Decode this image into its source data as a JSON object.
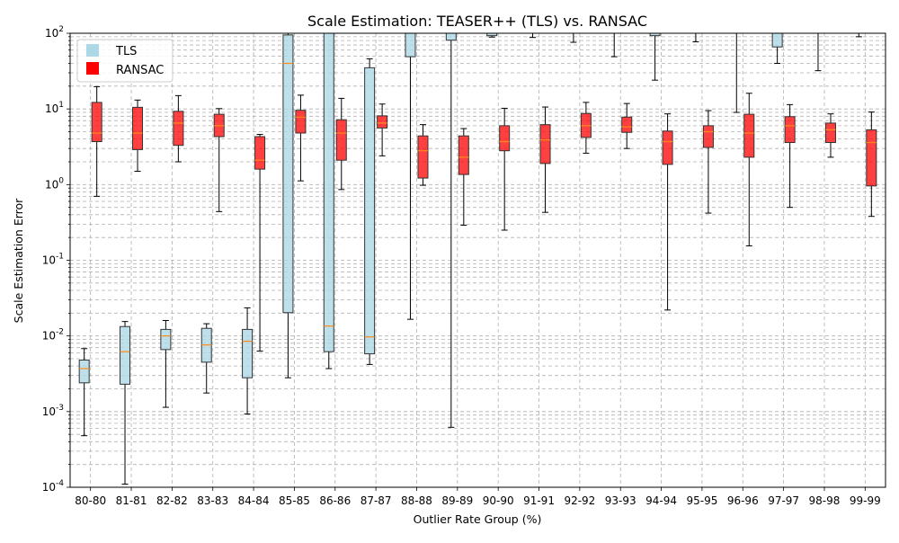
{
  "chart_data": {
    "type": "box",
    "title": "Scale Estimation: TEASER++ (TLS) vs. RANSAC",
    "xlabel": "Outlier Rate Group (%)",
    "ylabel": "Scale Estimation Error",
    "yscale": "log",
    "ylim": [
      0.0001,
      100
    ],
    "grid": true,
    "legend": {
      "position": "top-left",
      "entries": [
        "TLS",
        "RANSAC"
      ]
    },
    "categories": [
      "80-80",
      "81-81",
      "82-82",
      "83-83",
      "84-84",
      "85-85",
      "86-86",
      "87-87",
      "88-88",
      "89-89",
      "90-90",
      "91-91",
      "92-92",
      "93-93",
      "94-94",
      "95-95",
      "96-96",
      "97-97",
      "98-98",
      "99-99"
    ],
    "y_tick_labels": [
      "10^-4",
      "10^-3",
      "10^-2",
      "10^-1",
      "10^0",
      "10^1",
      "10^2"
    ],
    "series": [
      {
        "name": "TLS",
        "color": "#add8e6",
        "boxes": [
          {
            "whislo": 0.00048,
            "q1": 0.0024,
            "med": 0.0037,
            "q3": 0.0048,
            "whishi": 0.0068
          },
          {
            "whislo": 0.00011,
            "q1": 0.0023,
            "med": 0.0062,
            "q3": 0.0133,
            "whishi": 0.0155
          },
          {
            "whislo": 0.00114,
            "q1": 0.0066,
            "med": 0.01,
            "q3": 0.0122,
            "whishi": 0.016
          },
          {
            "whislo": 0.00176,
            "q1": 0.0045,
            "med": 0.0076,
            "q3": 0.0126,
            "whishi": 0.0145
          },
          {
            "whislo": 0.00093,
            "q1": 0.0028,
            "med": 0.0085,
            "q3": 0.0122,
            "whishi": 0.0235
          },
          {
            "whislo": 0.0028,
            "q1": 0.0203,
            "med": 40,
            "q3": 95,
            "whishi": 100
          },
          {
            "whislo": 0.0037,
            "q1": 0.0062,
            "med": 0.0135,
            "q3": 100,
            "whishi": 100
          },
          {
            "whislo": 0.0042,
            "q1": 0.0058,
            "med": 0.0097,
            "q3": 35,
            "whishi": 46
          },
          {
            "whislo": 0.0166,
            "q1": 49,
            "med": 100,
            "q3": 100,
            "whishi": 100
          },
          {
            "whislo": 0.00062,
            "q1": 81,
            "med": 100,
            "q3": 100,
            "whishi": 100
          },
          {
            "whislo": 89,
            "q1": 93,
            "med": 100,
            "q3": 100,
            "whishi": 100
          },
          {
            "whislo": 88,
            "q1": 100,
            "med": 100,
            "q3": 100,
            "whishi": 100
          },
          {
            "whislo": 76,
            "q1": 100,
            "med": 100,
            "q3": 100,
            "whishi": 100
          },
          {
            "whislo": 49,
            "q1": 100,
            "med": 100,
            "q3": 100,
            "whishi": 100
          },
          {
            "whislo": 24,
            "q1": 93,
            "med": 100,
            "q3": 100,
            "whishi": 100
          },
          {
            "whislo": 77,
            "q1": 100,
            "med": 100,
            "q3": 100,
            "whishi": 100
          },
          {
            "whislo": 9,
            "q1": 100,
            "med": 100,
            "q3": 100,
            "whishi": 100
          },
          {
            "whislo": 40,
            "q1": 66,
            "med": 100,
            "q3": 100,
            "whishi": 100
          },
          {
            "whislo": 32,
            "q1": 100,
            "med": 100,
            "q3": 100,
            "whishi": 100
          },
          {
            "whislo": 90,
            "q1": 100,
            "med": 100,
            "q3": 100,
            "whishi": 100
          }
        ]
      },
      {
        "name": "RANSAC",
        "color": "#ff0000",
        "boxes": [
          {
            "whislo": 0.7,
            "q1": 3.7,
            "med": 4.8,
            "q3": 12.2,
            "whishi": 19.7
          },
          {
            "whislo": 1.5,
            "q1": 2.9,
            "med": 4.8,
            "q3": 10.5,
            "whishi": 13.1
          },
          {
            "whislo": 2.0,
            "q1": 3.3,
            "med": 6.5,
            "q3": 9.3,
            "whishi": 15.0
          },
          {
            "whislo": 0.44,
            "q1": 4.3,
            "med": 6.0,
            "q3": 8.5,
            "whishi": 10.1
          },
          {
            "whislo": 0.0063,
            "q1": 1.6,
            "med": 2.1,
            "q3": 4.3,
            "whishi": 4.6
          },
          {
            "whislo": 1.12,
            "q1": 4.8,
            "med": 7.8,
            "q3": 9.6,
            "whishi": 15.2
          },
          {
            "whislo": 0.86,
            "q1": 2.1,
            "med": 4.8,
            "q3": 7.2,
            "whishi": 13.8
          },
          {
            "whislo": 2.4,
            "q1": 5.6,
            "med": 6.5,
            "q3": 8.1,
            "whishi": 11.6
          },
          {
            "whislo": 0.98,
            "q1": 1.22,
            "med": 2.8,
            "q3": 4.4,
            "whishi": 6.2
          },
          {
            "whislo": 0.29,
            "q1": 1.36,
            "med": 2.3,
            "q3": 4.4,
            "whishi": 5.5
          },
          {
            "whislo": 0.25,
            "q1": 2.8,
            "med": 3.7,
            "q3": 6.0,
            "whishi": 10.2
          },
          {
            "whislo": 0.43,
            "q1": 1.9,
            "med": 3.9,
            "q3": 6.2,
            "whishi": 10.6
          },
          {
            "whislo": 2.6,
            "q1": 4.2,
            "med": 6.0,
            "q3": 8.7,
            "whishi": 12.2
          },
          {
            "whislo": 3.0,
            "q1": 4.9,
            "med": 5.8,
            "q3": 7.8,
            "whishi": 11.8
          },
          {
            "whislo": 0.022,
            "q1": 1.85,
            "med": 3.7,
            "q3": 5.1,
            "whishi": 8.6
          },
          {
            "whislo": 0.42,
            "q1": 3.1,
            "med": 5.0,
            "q3": 6.0,
            "whishi": 9.5
          },
          {
            "whislo": 0.155,
            "q1": 2.3,
            "med": 4.8,
            "q3": 8.5,
            "whishi": 16.1
          },
          {
            "whislo": 0.5,
            "q1": 3.6,
            "med": 6.0,
            "q3": 7.9,
            "whishi": 11.4
          },
          {
            "whislo": 2.3,
            "q1": 3.6,
            "med": 5.3,
            "q3": 6.5,
            "whishi": 8.6
          },
          {
            "whislo": 0.38,
            "q1": 0.96,
            "med": 3.6,
            "q3": 5.3,
            "whishi": 9.1
          }
        ]
      }
    ]
  }
}
